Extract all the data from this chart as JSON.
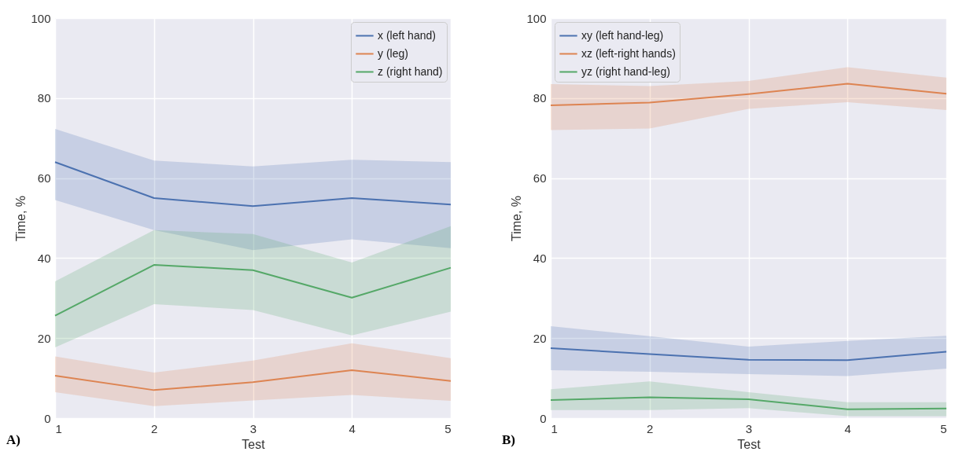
{
  "chart_data": [
    {
      "type": "line",
      "x": [
        1,
        2,
        3,
        4,
        5
      ],
      "xlim": [
        1,
        5
      ],
      "xticks": [
        1,
        2,
        3,
        4,
        5
      ],
      "ylim": [
        0,
        100
      ],
      "yticks": [
        0,
        20,
        40,
        60,
        80,
        100
      ],
      "xlabel": "Test",
      "ylabel": "Time, %",
      "grid": true,
      "legend": "top right",
      "annotations": [
        "A)"
      ],
      "series": [
        {
          "name": "x (left hand)",
          "color": "#4c72b0",
          "values": [
            64,
            55,
            53,
            55,
            53.4
          ],
          "lower": [
            54.5,
            47,
            42,
            44.7,
            42.5
          ],
          "upper": [
            72.3,
            64.4,
            62.9,
            64.6,
            64
          ]
        },
        {
          "name": "y (leg)",
          "color": "#dd8452",
          "values": [
            10.6,
            7,
            9,
            12,
            9.3
          ],
          "lower": [
            6.5,
            3,
            4.4,
            5.8,
            4.3
          ],
          "upper": [
            15.4,
            11.4,
            14.4,
            18.7,
            15
          ]
        },
        {
          "name": "z (right hand)",
          "color": "#55a868",
          "values": [
            25.6,
            38.3,
            37,
            30.1,
            37.6
          ],
          "lower": [
            17.7,
            28.5,
            27,
            20.7,
            26.6
          ],
          "upper": [
            34.2,
            47,
            46,
            38.9,
            48
          ]
        }
      ]
    },
    {
      "type": "line",
      "x": [
        1,
        2,
        3,
        4,
        5
      ],
      "xlim": [
        1,
        5
      ],
      "xticks": [
        1,
        2,
        3,
        4,
        5
      ],
      "ylim": [
        0,
        100
      ],
      "yticks": [
        0,
        20,
        40,
        60,
        80,
        100
      ],
      "xlabel": "Test",
      "ylabel": "Time, %",
      "grid": true,
      "legend": "top left",
      "annotations": [
        "B)"
      ],
      "series": [
        {
          "name": "xy (left hand-leg)",
          "color": "#4c72b0",
          "values": [
            17.5,
            16,
            14.6,
            14.5,
            16.6
          ],
          "lower": [
            12,
            11.6,
            11,
            10.5,
            12.4
          ],
          "upper": [
            23,
            20.5,
            17.9,
            19.3,
            20.6
          ]
        },
        {
          "name": "xz (left-right hands)",
          "color": "#dd8452",
          "values": [
            78.2,
            78.9,
            81,
            83.6,
            81.1
          ],
          "lower": [
            72,
            72.4,
            77.3,
            79,
            77
          ],
          "upper": [
            83.5,
            83,
            84.3,
            87.7,
            85.1
          ]
        },
        {
          "name": "yz (right hand-leg)",
          "color": "#55a868",
          "values": [
            4.5,
            5.2,
            4.7,
            2.2,
            2.4
          ],
          "lower": [
            2,
            2,
            2.5,
            0.5,
            0.5
          ],
          "upper": [
            7.2,
            9.2,
            6.5,
            4,
            4
          ]
        }
      ]
    }
  ]
}
